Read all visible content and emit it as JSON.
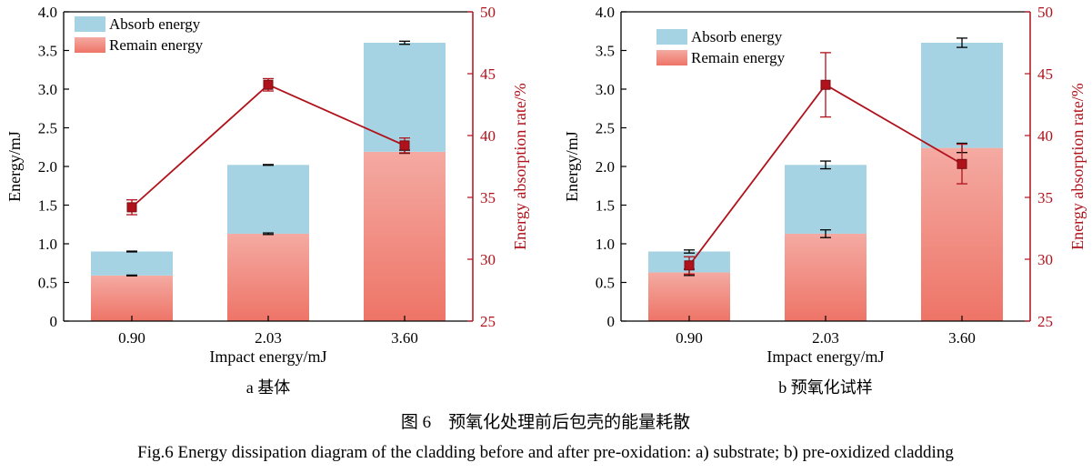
{
  "chart_data": [
    {
      "type": "bar",
      "subplot_label": "a 基体",
      "categories": [
        "0.90",
        "2.03",
        "3.60"
      ],
      "xlabel": "Impact energy/mJ",
      "ylabel": "Energy/mJ",
      "y2label": "Energy absorption rate/%",
      "ylim": [
        0,
        4.0
      ],
      "y2lim": [
        25,
        50
      ],
      "yticks": [
        "0",
        "0.5",
        "1.0",
        "1.5",
        "2.0",
        "2.5",
        "3.0",
        "3.5",
        "4.0"
      ],
      "y2ticks": [
        "25",
        "30",
        "35",
        "40",
        "45",
        "50"
      ],
      "legend": [
        "Absorb energy",
        "Remain energy"
      ],
      "legend_placement": "top-left",
      "stacked": true,
      "series": [
        {
          "name": "Remain energy",
          "values": [
            0.59,
            1.13,
            2.19
          ],
          "errors": [
            0.005,
            0.01,
            0.02
          ],
          "color": "#ef7b70"
        },
        {
          "name": "Absorb energy",
          "values": [
            0.31,
            0.89,
            1.41
          ],
          "errors": [
            0.005,
            0.005,
            0.02
          ],
          "color": "#a6d3e3"
        }
      ],
      "line": {
        "axis": "y2",
        "values": [
          34.2,
          44.1,
          39.2
        ],
        "errors": [
          0.6,
          0.5,
          0.6
        ],
        "color": "#b0121b"
      }
    },
    {
      "type": "bar",
      "subplot_label": "b 预氧化试样",
      "categories": [
        "0.90",
        "2.03",
        "3.60"
      ],
      "xlabel": "Impact energy/mJ",
      "ylabel": "Energy/mJ",
      "y2label": "Energy absorption rate/%",
      "ylim": [
        0,
        4.0
      ],
      "y2lim": [
        25,
        50
      ],
      "yticks": [
        "0",
        "0.5",
        "1.0",
        "1.5",
        "2.0",
        "2.5",
        "3.0",
        "3.5",
        "4.0"
      ],
      "y2ticks": [
        "25",
        "30",
        "35",
        "40",
        "45",
        "50"
      ],
      "legend": [
        "Absorb energy",
        "Remain energy"
      ],
      "legend_placement": "top-left",
      "stacked": true,
      "series": [
        {
          "name": "Remain energy",
          "values": [
            0.63,
            1.13,
            2.24
          ],
          "errors": [
            0.04,
            0.05,
            0.06
          ],
          "color": "#ef7b70"
        },
        {
          "name": "Absorb energy",
          "values": [
            0.27,
            0.89,
            1.36
          ],
          "errors": [
            0.02,
            0.05,
            0.06
          ],
          "color": "#a6d3e3"
        }
      ],
      "line": {
        "axis": "y2",
        "values": [
          29.5,
          44.1,
          37.7
        ],
        "errors": [
          0.7,
          2.6,
          1.6
        ],
        "color": "#b0121b"
      }
    }
  ],
  "caption_cn": "图 6　预氧化处理前后包壳的能量耗散",
  "caption_en": "Fig.6 Energy dissipation diagram of the cladding before and after pre-oxidation: a) substrate; b) pre-oxidized cladding"
}
